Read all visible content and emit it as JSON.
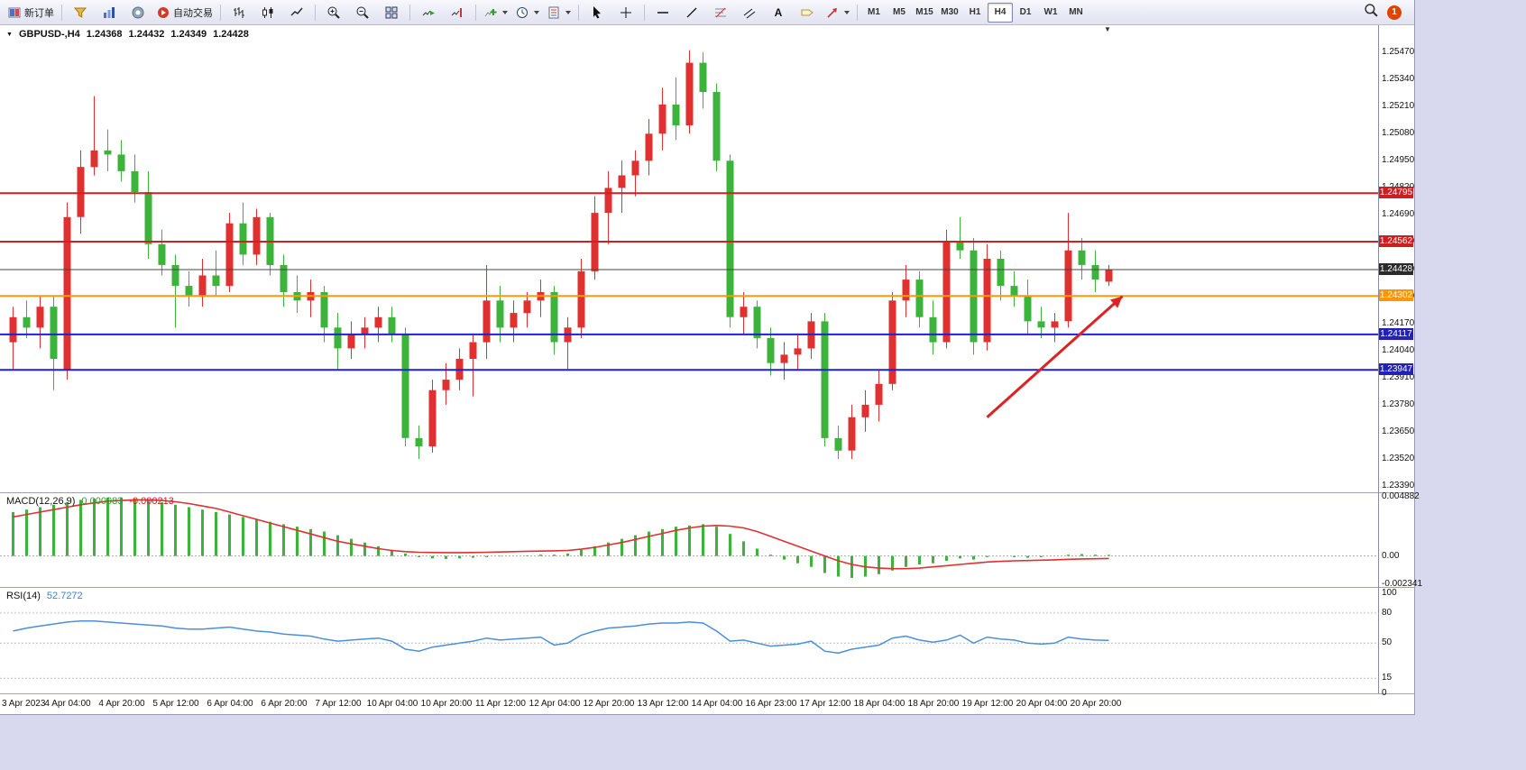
{
  "toolbar": {
    "new_order_label": "新订单",
    "autotrade_label": "自动交易",
    "timeframes": [
      "M1",
      "M5",
      "M15",
      "M30",
      "H1",
      "H4",
      "D1",
      "W1",
      "MN"
    ],
    "active_timeframe": "H4",
    "notification_count": "1"
  },
  "chart": {
    "collapse_icon": "▼",
    "scroll_marker": "▼"
  },
  "chart_data": [
    {
      "type": "candlestick",
      "title": "GBPUSD-,H4",
      "symbol": "GBPUSD-",
      "timeframe": "H4",
      "ohlc": {
        "open": "1.24368",
        "high": "1.24432",
        "low": "1.24349",
        "close": "1.24428"
      },
      "ylim": [
        1.2336,
        1.256
      ],
      "y_ticks": [
        "1.25470",
        "1.25340",
        "1.25210",
        "1.25080",
        "1.24950",
        "1.24820",
        "1.24690",
        "1.24560",
        "1.24430",
        "1.24300",
        "1.24170",
        "1.24040",
        "1.23910",
        "1.23780",
        "1.23650",
        "1.23520",
        "1.23390"
      ],
      "x_ticks": [
        "3 Apr 2023",
        "4 Apr 04:00",
        "4 Apr 20:00",
        "5 Apr 12:00",
        "6 Apr 04:00",
        "6 Apr 20:00",
        "7 Apr 12:00",
        "10 Apr 04:00",
        "10 Apr 20:00",
        "11 Apr 12:00",
        "12 Apr 04:00",
        "12 Apr 20:00",
        "13 Apr 12:00",
        "14 Apr 04:00",
        "16 Apr 23:00",
        "17 Apr 12:00",
        "18 Apr 04:00",
        "18 Apr 20:00",
        "19 Apr 12:00",
        "20 Apr 04:00",
        "20 Apr 20:00"
      ],
      "colors": {
        "up": "#e03030",
        "down": "#3cb43c"
      },
      "candles": [
        [
          1.2408,
          1.2425,
          1.2395,
          1.242
        ],
        [
          1.242,
          1.2428,
          1.241,
          1.2415
        ],
        [
          1.2415,
          1.243,
          1.2405,
          1.2425
        ],
        [
          1.2425,
          1.243,
          1.2385,
          1.24
        ],
        [
          1.2395,
          1.2475,
          1.239,
          1.2468
        ],
        [
          1.2468,
          1.25,
          1.246,
          1.2492
        ],
        [
          1.2492,
          1.2526,
          1.2488,
          1.25
        ],
        [
          1.25,
          1.251,
          1.249,
          1.2498
        ],
        [
          1.2498,
          1.2505,
          1.2485,
          1.249
        ],
        [
          1.249,
          1.2498,
          1.2475,
          1.248
        ],
        [
          1.248,
          1.249,
          1.2448,
          1.2455
        ],
        [
          1.2455,
          1.2462,
          1.244,
          1.2445
        ],
        [
          1.2445,
          1.245,
          1.2415,
          1.2435
        ],
        [
          1.2435,
          1.2442,
          1.2425,
          1.243
        ],
        [
          1.243,
          1.2448,
          1.2425,
          1.244
        ],
        [
          1.244,
          1.2452,
          1.243,
          1.2435
        ],
        [
          1.2435,
          1.247,
          1.2432,
          1.2465
        ],
        [
          1.2465,
          1.2475,
          1.2445,
          1.245
        ],
        [
          1.245,
          1.2472,
          1.2445,
          1.2468
        ],
        [
          1.2468,
          1.247,
          1.244,
          1.2445
        ],
        [
          1.2445,
          1.245,
          1.2425,
          1.2432
        ],
        [
          1.2432,
          1.244,
          1.2422,
          1.2428
        ],
        [
          1.2428,
          1.2438,
          1.242,
          1.2432
        ],
        [
          1.2432,
          1.2435,
          1.2408,
          1.2415
        ],
        [
          1.2415,
          1.2422,
          1.2395,
          1.2405
        ],
        [
          1.2405,
          1.2418,
          1.24,
          1.2412
        ],
        [
          1.2412,
          1.242,
          1.2405,
          1.2415
        ],
        [
          1.2415,
          1.2425,
          1.2408,
          1.242
        ],
        [
          1.242,
          1.2425,
          1.2408,
          1.2412
        ],
        [
          1.2412,
          1.2415,
          1.2358,
          1.2362
        ],
        [
          1.2362,
          1.2368,
          1.2352,
          1.2358
        ],
        [
          1.2358,
          1.239,
          1.2355,
          1.2385
        ],
        [
          1.2385,
          1.2398,
          1.2378,
          1.239
        ],
        [
          1.239,
          1.2405,
          1.2385,
          1.24
        ],
        [
          1.24,
          1.2412,
          1.2382,
          1.2408
        ],
        [
          1.2408,
          1.2445,
          1.24,
          1.2428
        ],
        [
          1.2428,
          1.2435,
          1.2408,
          1.2415
        ],
        [
          1.2415,
          1.2428,
          1.2408,
          1.2422
        ],
        [
          1.2422,
          1.2432,
          1.2415,
          1.2428
        ],
        [
          1.2428,
          1.2438,
          1.242,
          1.2432
        ],
        [
          1.2432,
          1.2435,
          1.2402,
          1.2408
        ],
        [
          1.2408,
          1.242,
          1.2395,
          1.2415
        ],
        [
          1.2415,
          1.2448,
          1.241,
          1.2442
        ],
        [
          1.2442,
          1.2478,
          1.2438,
          1.247
        ],
        [
          1.247,
          1.249,
          1.2455,
          1.2482
        ],
        [
          1.2482,
          1.2495,
          1.247,
          1.2488
        ],
        [
          1.2488,
          1.25,
          1.2478,
          1.2495
        ],
        [
          1.2495,
          1.2515,
          1.2488,
          1.2508
        ],
        [
          1.2508,
          1.253,
          1.25,
          1.2522
        ],
        [
          1.2522,
          1.2535,
          1.2505,
          1.2512
        ],
        [
          1.2512,
          1.2548,
          1.2508,
          1.2542
        ],
        [
          1.2542,
          1.2547,
          1.252,
          1.2528
        ],
        [
          1.2528,
          1.2532,
          1.249,
          1.2495
        ],
        [
          1.2495,
          1.2498,
          1.2415,
          1.242
        ],
        [
          1.242,
          1.2432,
          1.2412,
          1.2425
        ],
        [
          1.2425,
          1.2428,
          1.2405,
          1.241
        ],
        [
          1.241,
          1.2415,
          1.2392,
          1.2398
        ],
        [
          1.2398,
          1.2408,
          1.239,
          1.2402
        ],
        [
          1.2402,
          1.2412,
          1.2395,
          1.2405
        ],
        [
          1.2405,
          1.2422,
          1.24,
          1.2418
        ],
        [
          1.2418,
          1.2422,
          1.2358,
          1.2362
        ],
        [
          1.2362,
          1.2368,
          1.2352,
          1.2356
        ],
        [
          1.2356,
          1.2378,
          1.2352,
          1.2372
        ],
        [
          1.2372,
          1.2385,
          1.2365,
          1.2378
        ],
        [
          1.2378,
          1.2395,
          1.237,
          1.2388
        ],
        [
          1.2388,
          1.2432,
          1.2385,
          1.2428
        ],
        [
          1.2428,
          1.2445,
          1.242,
          1.2438
        ],
        [
          1.2438,
          1.2442,
          1.2415,
          1.242
        ],
        [
          1.242,
          1.2428,
          1.2402,
          1.2408
        ],
        [
          1.2408,
          1.2462,
          1.2405,
          1.2456
        ],
        [
          1.2456,
          1.2468,
          1.2448,
          1.2452
        ],
        [
          1.2452,
          1.2458,
          1.2402,
          1.2408
        ],
        [
          1.2408,
          1.2455,
          1.2404,
          1.2448
        ],
        [
          1.2448,
          1.2452,
          1.2428,
          1.2435
        ],
        [
          1.2435,
          1.2442,
          1.2425,
          1.243
        ],
        [
          1.243,
          1.2438,
          1.2412,
          1.2418
        ],
        [
          1.2418,
          1.2425,
          1.241,
          1.2415
        ],
        [
          1.2415,
          1.2422,
          1.2408,
          1.2418
        ],
        [
          1.2418,
          1.247,
          1.2415,
          1.2452
        ],
        [
          1.2452,
          1.2458,
          1.2438,
          1.2445
        ],
        [
          1.2445,
          1.2452,
          1.2432,
          1.2438
        ],
        [
          1.2437,
          1.2445,
          1.2435,
          1.24428
        ]
      ],
      "hlines": [
        {
          "price": 1.24795,
          "color": "#cc2222",
          "width": 2
        },
        {
          "price": 1.24562,
          "color": "#cc2222",
          "width": 2
        },
        {
          "price": 1.24428,
          "color": "#444444",
          "width": 1
        },
        {
          "price": 1.24302,
          "color": "#ff9a00",
          "width": 2
        },
        {
          "price": 1.24117,
          "color": "#2222cc",
          "width": 2
        },
        {
          "price": 1.23947,
          "color": "#2222cc",
          "width": 2
        }
      ],
      "price_tags": [
        {
          "label": "1.24795",
          "price": 1.24795,
          "color": "#cc2020"
        },
        {
          "label": "1.24562",
          "price": 1.24562,
          "color": "#cc2020"
        },
        {
          "label": "1.24428",
          "price": 1.24428,
          "color": "#2b2b2b"
        },
        {
          "label": "1.24302",
          "price": 1.24302,
          "color": "#ff9500"
        },
        {
          "label": "1.24117",
          "price": 1.24117,
          "color": "#2222bb"
        },
        {
          "label": "1.23947",
          "price": 1.23947,
          "color": "#2222bb"
        }
      ],
      "arrow": {
        "from_index": 72,
        "from_price": 1.2372,
        "to_index": 82,
        "to_price": 1.243,
        "color": "#dd2222"
      }
    },
    {
      "type": "macd",
      "label": "MACD(12,26,9)",
      "values": [
        "0.000083",
        "-0.000213"
      ],
      "ylim": [
        -0.00255,
        0.00515
      ],
      "y_ticks": [
        {
          "label": "0.004882",
          "value": 0.004882
        },
        {
          "label": "0.00",
          "value": 0
        },
        {
          "label": "-0.002341",
          "value": -0.002341
        }
      ],
      "colors": {
        "histogram": "#3cb43c",
        "signal": "#e03030"
      },
      "histogram": [
        0.0036,
        0.0038,
        0.004,
        0.0042,
        0.0044,
        0.0046,
        0.0047,
        0.0048,
        0.0048,
        0.0047,
        0.0046,
        0.0044,
        0.0042,
        0.004,
        0.0038,
        0.0036,
        0.0034,
        0.0032,
        0.003,
        0.0028,
        0.0026,
        0.0024,
        0.0022,
        0.002,
        0.0017,
        0.0014,
        0.0011,
        0.0008,
        0.0005,
        0.0002,
        -0.0001,
        -0.0002,
        -0.00025,
        -0.0002,
        -0.00015,
        -0.0001,
        -5e-05,
        0,
        5e-05,
        0.0001,
        0.0001,
        0.0002,
        0.0005,
        0.0008,
        0.0011,
        0.0014,
        0.0017,
        0.002,
        0.0022,
        0.0024,
        0.0025,
        0.0026,
        0.0024,
        0.0018,
        0.0012,
        0.0006,
        0.0001,
        -0.0003,
        -0.0006,
        -0.0009,
        -0.0014,
        -0.0017,
        -0.0018,
        -0.0017,
        -0.0015,
        -0.0012,
        -0.0009,
        -0.0007,
        -0.0006,
        -0.0004,
        -0.0002,
        -0.0003,
        -0.0001,
        0,
        -0.0001,
        -0.00015,
        -0.0001,
        0,
        0.0001,
        0.00015,
        0.0001,
        8.3e-05
      ],
      "signal": [
        0.0032,
        0.0034,
        0.0036,
        0.0038,
        0.004,
        0.0042,
        0.00435,
        0.0045,
        0.00455,
        0.0046,
        0.0046,
        0.00455,
        0.00445,
        0.0043,
        0.0041,
        0.0039,
        0.0036,
        0.0033,
        0.003,
        0.0027,
        0.0024,
        0.0021,
        0.0018,
        0.0015,
        0.0012,
        0.001,
        0.0008,
        0.0006,
        0.00045,
        0.00035,
        0.0003,
        0.00028,
        0.00027,
        0.00027,
        0.00028,
        0.0003,
        0.00032,
        0.00035,
        0.00038,
        0.0004,
        0.00042,
        0.00045,
        0.00055,
        0.0007,
        0.0009,
        0.0011,
        0.00135,
        0.0016,
        0.00185,
        0.0021,
        0.0023,
        0.00245,
        0.0025,
        0.00245,
        0.0023,
        0.002,
        0.0016,
        0.0012,
        0.0008,
        0.0004,
        0,
        -0.0004,
        -0.0007,
        -0.0009,
        -0.001,
        -0.00105,
        -0.00105,
        -0.001,
        -0.0009,
        -0.0008,
        -0.0007,
        -0.0006,
        -0.0005,
        -0.00045,
        -0.0004,
        -0.00038,
        -0.00035,
        -0.00032,
        -0.00028,
        -0.00025,
        -0.00023,
        -0.000213
      ]
    },
    {
      "type": "rsi",
      "label": "RSI(14)",
      "value": "52.7272",
      "ylim": [
        0,
        105
      ],
      "y_ticks": [
        {
          "label": "100",
          "value": 100
        },
        {
          "label": "80",
          "value": 80
        },
        {
          "label": "50",
          "value": 50
        },
        {
          "label": "15",
          "value": 15
        },
        {
          "label": "0",
          "value": 0
        }
      ],
      "levels": [
        80,
        50,
        15
      ],
      "color": "#4a90d9",
      "series": [
        62,
        65,
        67,
        69,
        71,
        72,
        72,
        71,
        70,
        69,
        68,
        67,
        65,
        64,
        64,
        65,
        66,
        64,
        62,
        61,
        59,
        58,
        57,
        54,
        52,
        53,
        54,
        55,
        52,
        44,
        42,
        46,
        48,
        50,
        52,
        55,
        53,
        54,
        55,
        56,
        48,
        50,
        58,
        62,
        65,
        66,
        67,
        69,
        70,
        70,
        71,
        70,
        62,
        52,
        53,
        50,
        47,
        48,
        49,
        52,
        42,
        40,
        44,
        46,
        48,
        55,
        57,
        53,
        51,
        53,
        58,
        50,
        56,
        54,
        53,
        50,
        49,
        50,
        56,
        54,
        53,
        52.73
      ]
    }
  ]
}
